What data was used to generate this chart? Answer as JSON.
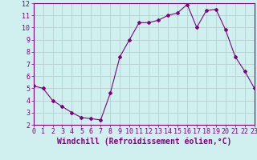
{
  "x": [
    0,
    1,
    2,
    3,
    4,
    5,
    6,
    7,
    8,
    9,
    10,
    11,
    12,
    13,
    14,
    15,
    16,
    17,
    18,
    19,
    20,
    21,
    22,
    23
  ],
  "y": [
    5.2,
    5.0,
    4.0,
    3.5,
    3.0,
    2.6,
    2.5,
    2.4,
    4.6,
    7.6,
    9.0,
    10.4,
    10.4,
    10.6,
    11.0,
    11.2,
    11.9,
    10.0,
    11.4,
    11.5,
    9.8,
    7.6,
    6.4,
    5.0
  ],
  "xlim": [
    0,
    23
  ],
  "ylim": [
    2,
    12
  ],
  "yticks": [
    2,
    3,
    4,
    5,
    6,
    7,
    8,
    9,
    10,
    11,
    12
  ],
  "xticks": [
    0,
    1,
    2,
    3,
    4,
    5,
    6,
    7,
    8,
    9,
    10,
    11,
    12,
    13,
    14,
    15,
    16,
    17,
    18,
    19,
    20,
    21,
    22,
    23
  ],
  "xlabel": "Windchill (Refroidissement éolien,°C)",
  "line_color": "#800080",
  "marker": "D",
  "marker_size": 2.0,
  "bg_color": "#cff0ee",
  "grid_color": "#b0c8c8",
  "tick_fontsize": 6.0,
  "label_fontsize": 7.0
}
